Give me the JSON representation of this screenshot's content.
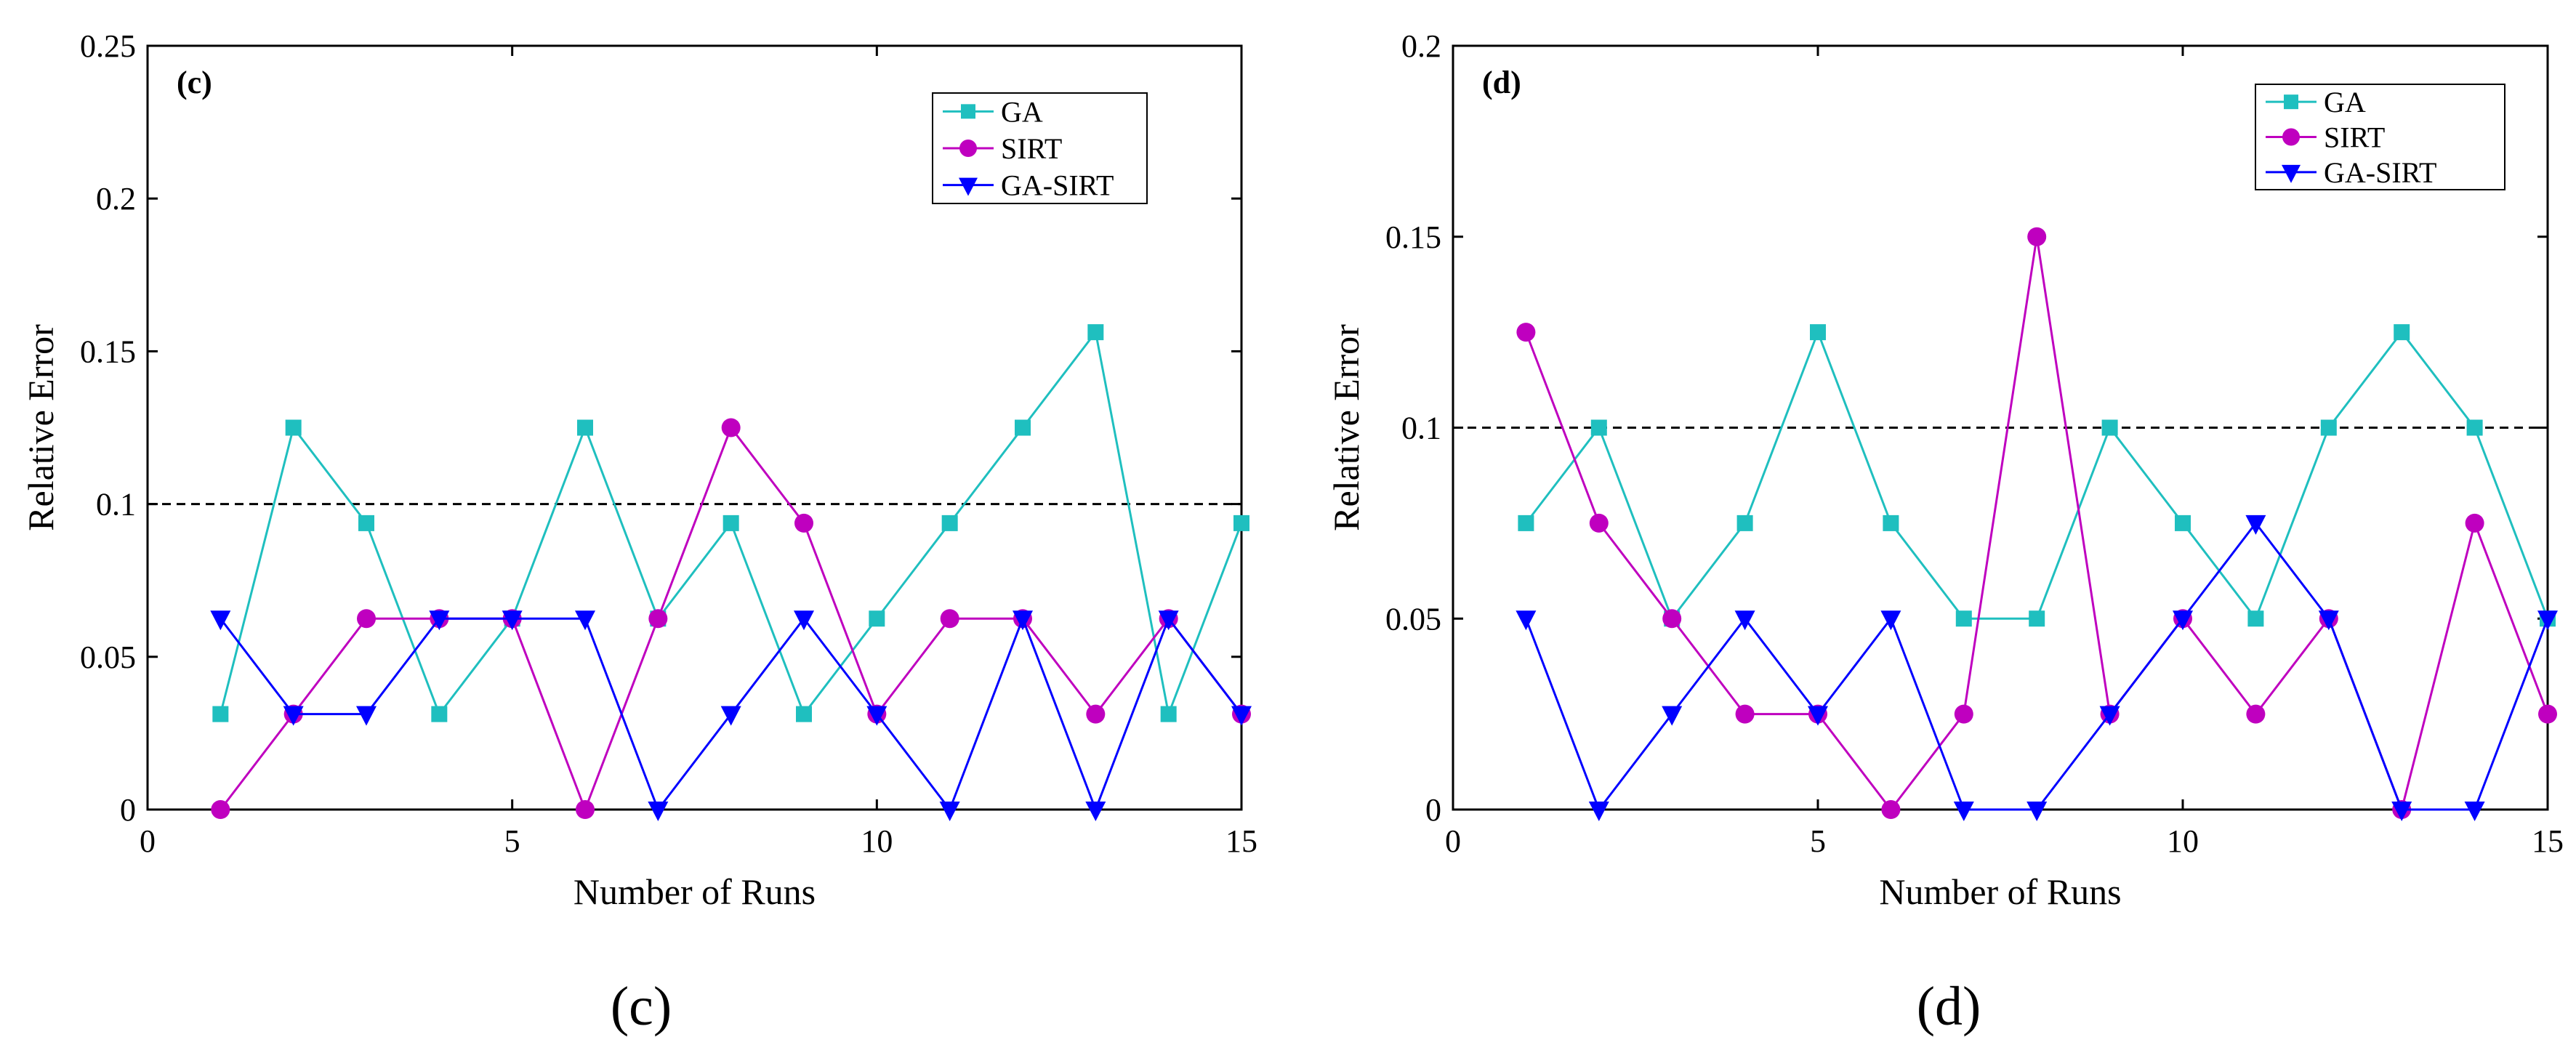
{
  "figure": {
    "captions": [
      "(c)",
      "(d)"
    ]
  },
  "chart_data": [
    {
      "type": "line",
      "panel_label": "(c)",
      "caption": "(c)",
      "xlabel": "Number of Runs",
      "ylabel": "Relative Error",
      "xlim": [
        0,
        15
      ],
      "ylim": [
        0,
        0.25
      ],
      "xticks": [
        0,
        5,
        10,
        15
      ],
      "xtick_labels": [
        "0",
        "5",
        "10",
        "15"
      ],
      "yticks": [
        0,
        0.05,
        0.1,
        0.15,
        0.2,
        0.25
      ],
      "ytick_labels": [
        "0",
        "0.05",
        "0.1",
        "0.15",
        "0.2",
        "0.25"
      ],
      "grid": false,
      "legend_position": "top-right",
      "reference_line": {
        "y": 0.1,
        "style": "dashed",
        "color": "#000000"
      },
      "x": [
        1,
        2,
        3,
        4,
        5,
        6,
        7,
        8,
        9,
        10,
        11,
        12,
        13,
        14,
        15
      ],
      "series": [
        {
          "name": "GA",
          "color": "#1fbfbf",
          "marker": "square",
          "values": [
            0.03125,
            0.125,
            0.09375,
            0.03125,
            0.0625,
            0.125,
            0.0625,
            0.09375,
            0.03125,
            0.0625,
            0.09375,
            0.125,
            0.15625,
            0.03125,
            0.09375
          ]
        },
        {
          "name": "SIRT",
          "color": "#bf00bf",
          "marker": "circle",
          "values": [
            0,
            0.03125,
            0.0625,
            0.0625,
            0.0625,
            0,
            0.0625,
            0.125,
            0.09375,
            0.03125,
            0.0625,
            0.0625,
            0.03125,
            0.0625,
            0.03125
          ]
        },
        {
          "name": "GA-SIRT",
          "color": "#0000ff",
          "marker": "triangle-down",
          "values": [
            0.0625,
            0.03125,
            0.03125,
            0.0625,
            0.0625,
            0.0625,
            0,
            0.03125,
            0.0625,
            0.03125,
            0,
            0.0625,
            0,
            0.0625,
            0.03125
          ]
        }
      ]
    },
    {
      "type": "line",
      "panel_label": "(d)",
      "caption": "(d)",
      "xlabel": "Number of Runs",
      "ylabel": "Relative Error",
      "xlim": [
        0,
        15
      ],
      "ylim": [
        0,
        0.2
      ],
      "xticks": [
        0,
        5,
        10,
        15
      ],
      "xtick_labels": [
        "0",
        "5",
        "10",
        "15"
      ],
      "yticks": [
        0,
        0.05,
        0.1,
        0.15,
        0.2
      ],
      "ytick_labels": [
        "0",
        "0.05",
        "0.1",
        "0.15",
        "0.2"
      ],
      "grid": false,
      "legend_position": "top-right",
      "reference_line": {
        "y": 0.1,
        "style": "dashed",
        "color": "#000000"
      },
      "x": [
        1,
        2,
        3,
        4,
        5,
        6,
        7,
        8,
        9,
        10,
        11,
        12,
        13,
        14,
        15
      ],
      "series": [
        {
          "name": "GA",
          "color": "#1fbfbf",
          "marker": "square",
          "values": [
            0.075,
            0.1,
            0.05,
            0.075,
            0.125,
            0.075,
            0.05,
            0.05,
            0.1,
            0.075,
            0.05,
            0.1,
            0.125,
            0.1,
            0.05
          ]
        },
        {
          "name": "SIRT",
          "color": "#bf00bf",
          "marker": "circle",
          "values": [
            0.125,
            0.075,
            0.05,
            0.025,
            0.025,
            0,
            0.025,
            0.15,
            0.025,
            0.05,
            0.025,
            0.05,
            0,
            0.075,
            0.025
          ]
        },
        {
          "name": "GA-SIRT",
          "color": "#0000ff",
          "marker": "triangle-down",
          "values": [
            0.05,
            0,
            0.025,
            0.05,
            0.025,
            0.05,
            0,
            0,
            0.025,
            0.05,
            0.075,
            0.05,
            0,
            0,
            0.05
          ]
        }
      ]
    }
  ]
}
